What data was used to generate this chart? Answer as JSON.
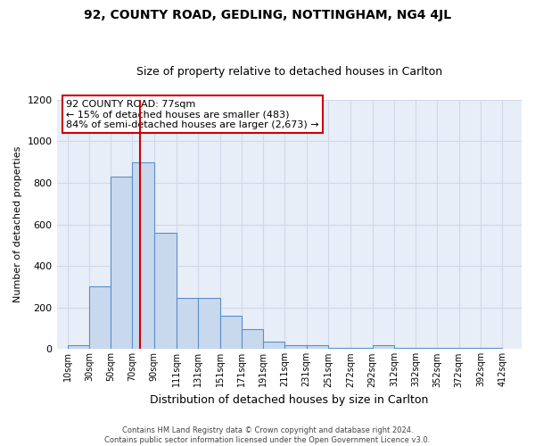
{
  "title": "92, COUNTY ROAD, GEDLING, NOTTINGHAM, NG4 4JL",
  "subtitle": "Size of property relative to detached houses in Carlton",
  "xlabel": "Distribution of detached houses by size in Carlton",
  "ylabel": "Number of detached properties",
  "bar_left_edges": [
    10,
    30,
    50,
    70,
    90,
    111,
    131,
    151,
    171,
    191,
    211,
    231,
    251,
    272,
    292,
    312,
    332,
    352,
    372,
    392
  ],
  "bar_heights": [
    20,
    300,
    830,
    900,
    560,
    245,
    245,
    160,
    95,
    35,
    20,
    20,
    5,
    5,
    20,
    5,
    5,
    5,
    5,
    5
  ],
  "bar_widths": [
    20,
    20,
    20,
    20,
    21,
    20,
    20,
    20,
    20,
    20,
    20,
    20,
    21,
    20,
    20,
    20,
    20,
    20,
    20,
    20
  ],
  "bar_color": "#c9d9ed",
  "bar_edge_color": "#5b8fc9",
  "vline_x": 77,
  "vline_color": "#cc0000",
  "annotation_text_line1": "92 COUNTY ROAD: 77sqm",
  "annotation_text_line2": "← 15% of detached houses are smaller (483)",
  "annotation_text_line3": "84% of semi-detached houses are larger (2,673) →",
  "annotation_box_color": "#cc0000",
  "xtick_labels": [
    "10sqm",
    "30sqm",
    "50sqm",
    "70sqm",
    "90sqm",
    "111sqm",
    "131sqm",
    "151sqm",
    "171sqm",
    "191sqm",
    "211sqm",
    "231sqm",
    "251sqm",
    "272sqm",
    "292sqm",
    "312sqm",
    "332sqm",
    "352sqm",
    "372sqm",
    "392sqm",
    "412sqm"
  ],
  "xtick_positions": [
    10,
    30,
    50,
    70,
    90,
    111,
    131,
    151,
    171,
    191,
    211,
    231,
    251,
    272,
    292,
    312,
    332,
    352,
    372,
    392,
    412
  ],
  "ylim": [
    0,
    1200
  ],
  "xlim": [
    0,
    430
  ],
  "grid_color": "#d0d8e8",
  "plot_bg_color": "#e8eef8",
  "fig_bg_color": "#ffffff",
  "footer_line1": "Contains HM Land Registry data © Crown copyright and database right 2024.",
  "footer_line2": "Contains public sector information licensed under the Open Government Licence v3.0."
}
